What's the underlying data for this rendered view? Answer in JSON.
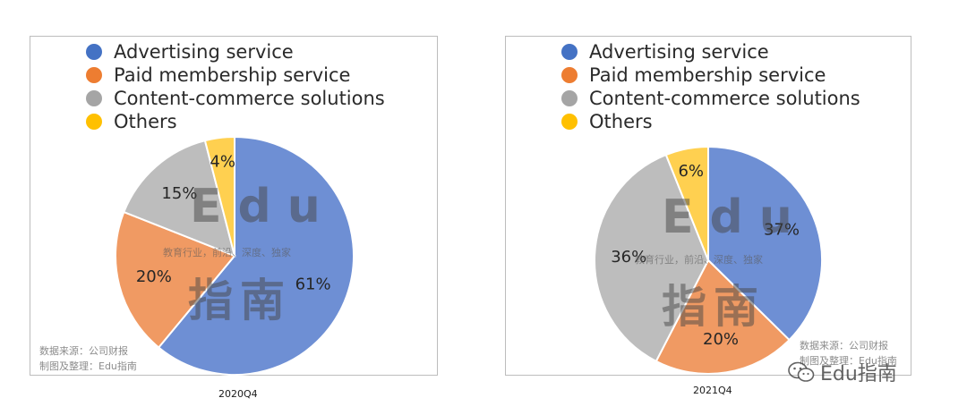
{
  "colors": {
    "advertising": "#4472C4",
    "membership": "#ED7D31",
    "content": "#A5A5A5",
    "others": "#FFC000",
    "pie_advertising_fill": "#6E8FD4",
    "pie_membership_fill": "#F09A63",
    "pie_content_fill": "#BDBDBD",
    "pie_others_fill": "#FFD050"
  },
  "legend": [
    {
      "label": "Advertising service",
      "color_key": "advertising"
    },
    {
      "label": "Paid membership service",
      "color_key": "membership"
    },
    {
      "label": "Content-commerce solutions",
      "color_key": "content"
    },
    {
      "label": "Others",
      "color_key": "others"
    }
  ],
  "watermark": {
    "letters": "Edu",
    "tagline": "教育行业，前沿、深度、独家",
    "han": "指南"
  },
  "source_note": {
    "line1": "数据来源：公司财报",
    "line2": "制图及整理：Edu指南"
  },
  "wechat_label": "Edu指南",
  "chart_data": [
    {
      "type": "pie",
      "caption": "2020Q4",
      "categories": [
        "Advertising service",
        "Paid membership service",
        "Content-commerce solutions",
        "Others"
      ],
      "values": [
        61,
        20,
        15,
        4
      ],
      "labels": [
        "61%",
        "20%",
        "15%",
        "4%"
      ]
    },
    {
      "type": "pie",
      "caption": "2021Q4",
      "categories": [
        "Advertising service",
        "Paid membership service",
        "Content-commerce solutions",
        "Others"
      ],
      "values": [
        37,
        20,
        36,
        6
      ],
      "labels": [
        "37%",
        "20%",
        "36%",
        "6%"
      ]
    }
  ]
}
